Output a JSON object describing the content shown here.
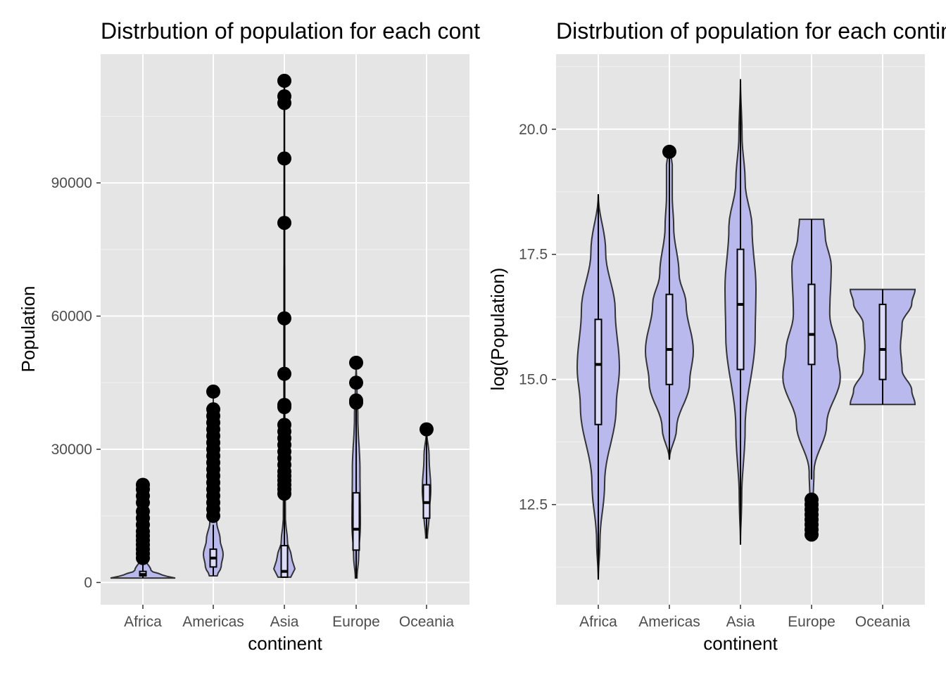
{
  "chart_data": [
    {
      "type": "violin",
      "title": "Distrbution of population for each continent",
      "xlabel": "continent",
      "ylabel": "Population",
      "categories": [
        "Africa",
        "Americas",
        "Asia",
        "Europe",
        "Oceania"
      ],
      "y_ticks": [
        0,
        30000,
        60000,
        90000
      ],
      "y_tick_labels": [
        "0",
        "30000",
        "60000",
        "90000"
      ],
      "ylim": [
        -5000,
        119000
      ],
      "grid": true,
      "colors": {
        "panel": "#e5e5e5",
        "fill": "#b9b9ee",
        "line": "#333333",
        "box_fill": "#dcdcf8",
        "box_line": "#000000",
        "points": "#000000"
      },
      "violin_range": [
        [
          1000,
          22000
        ],
        [
          1500,
          42000
        ],
        [
          1200,
          113000
        ],
        [
          1000,
          49500
        ],
        [
          10000,
          34500
        ]
      ],
      "box": [
        {
          "q1": 1500,
          "median": 1800,
          "q3": 2500,
          "whisker_low": 1000,
          "whisker_high": 22000
        },
        {
          "q1": 3500,
          "median": 5500,
          "q3": 7500,
          "whisker_low": 1500,
          "whisker_high": 13000
        },
        {
          "q1": 1200,
          "median": 2500,
          "q3": 8300,
          "whisker_low": 1200,
          "whisker_high": 113000
        },
        {
          "q1": 7300,
          "median": 12000,
          "q3": 20200,
          "whisker_low": 1000,
          "whisker_high": 40000
        },
        {
          "q1": 14500,
          "median": 18000,
          "q3": 22000,
          "whisker_low": 10000,
          "whisker_high": 34500
        }
      ],
      "outliers": [
        [
          5500,
          6500,
          7500,
          8500,
          9500,
          10500,
          11500,
          13000,
          14500,
          16000,
          18000,
          19500,
          21000,
          22000
        ],
        [
          15000,
          16500,
          18000,
          19500,
          21000,
          22500,
          24000,
          25500,
          27000,
          28500,
          30000,
          31500,
          33000,
          34500,
          36000,
          37500,
          39000,
          43000
        ],
        [
          20000,
          21000,
          22000,
          23000,
          24000,
          25000,
          26500,
          28000,
          29500,
          31000,
          32500,
          34000,
          35500,
          39500,
          40000,
          47000,
          59500,
          81000,
          95500,
          108000,
          109500,
          113000
        ],
        [
          40500,
          41000,
          45000,
          49500
        ],
        [
          34500
        ]
      ]
    },
    {
      "type": "violin",
      "title": "Distrbution of population for each continent",
      "xlabel": "continent",
      "ylabel": "log(Population)",
      "categories": [
        "Africa",
        "Americas",
        "Asia",
        "Europe",
        "Oceania"
      ],
      "y_ticks": [
        12.5,
        15.0,
        17.5,
        20.0
      ],
      "y_tick_labels": [
        "12.5",
        "15.0",
        "17.5",
        "20.0"
      ],
      "ylim": [
        10.5,
        21.5
      ],
      "grid": true,
      "colors": {
        "panel": "#e5e5e5",
        "fill": "#b9b9ee",
        "line": "#333333",
        "box_fill": "#dcdcf8",
        "box_line": "#000000",
        "points": "#000000"
      },
      "violin_range": [
        [
          11.0,
          18.7
        ],
        [
          13.4,
          19.6
        ],
        [
          11.7,
          21.0
        ],
        [
          11.9,
          18.2
        ],
        [
          14.5,
          16.8
        ]
      ],
      "box": [
        {
          "q1": 14.1,
          "median": 15.3,
          "q3": 16.2,
          "whisker_low": 11.0,
          "whisker_high": 18.7
        },
        {
          "q1": 14.9,
          "median": 15.6,
          "q3": 16.7,
          "whisker_low": 13.4,
          "whisker_high": 19.5
        },
        {
          "q1": 15.2,
          "median": 16.5,
          "q3": 17.6,
          "whisker_low": 11.7,
          "whisker_high": 21.0
        },
        {
          "q1": 15.3,
          "median": 15.9,
          "q3": 16.9,
          "whisker_low": 13.0,
          "whisker_high": 18.2
        },
        {
          "q1": 15.0,
          "median": 15.6,
          "q3": 16.5,
          "whisker_low": 14.5,
          "whisker_high": 16.8
        }
      ],
      "outliers": [
        [],
        [
          19.55
        ],
        [],
        [
          11.9,
          12.0,
          12.1,
          12.2,
          12.3,
          12.4,
          12.5,
          12.6
        ],
        []
      ]
    }
  ]
}
